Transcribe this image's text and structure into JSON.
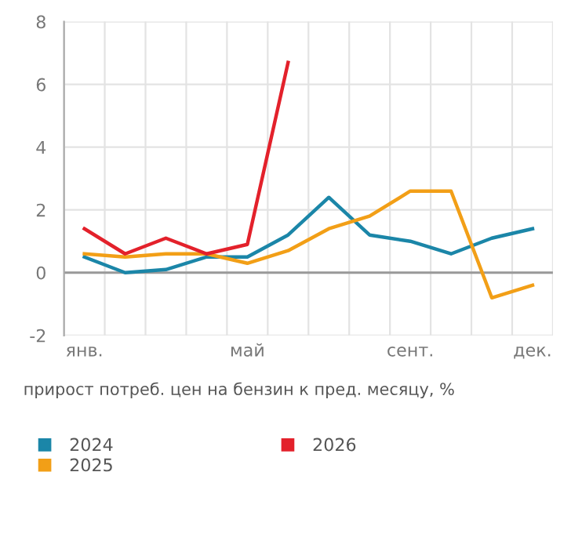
{
  "chart_data": {
    "type": "line",
    "xlabel": "прирост потреб. цен на бензин к пред. месяцу, %",
    "categories": [
      "янв.",
      null,
      null,
      null,
      "май",
      null,
      null,
      null,
      "сент.",
      null,
      null,
      "дек."
    ],
    "series": [
      {
        "name": "2024",
        "color": "#1b86a8",
        "values": [
          0.5,
          0.0,
          0.1,
          0.5,
          0.5,
          1.2,
          2.4,
          1.2,
          1.0,
          0.6,
          1.1,
          1.4
        ]
      },
      {
        "name": "2025",
        "color": "#f29f17",
        "values": [
          0.6,
          0.5,
          0.6,
          0.6,
          0.3,
          0.7,
          1.4,
          1.8,
          2.6,
          2.6,
          -0.8,
          -0.4
        ]
      },
      {
        "name": "2026",
        "color": "#e3212b",
        "values": [
          1.4,
          0.6,
          1.1,
          0.6,
          0.9,
          6.7,
          null,
          null,
          null,
          null,
          null,
          null
        ]
      }
    ],
    "ylim": [
      -2,
      8
    ],
    "yticks": [
      -2,
      0,
      2,
      4,
      6,
      8
    ],
    "grid": true,
    "legend": "bottom",
    "marker": "none",
    "line_style": "solid",
    "ref_lines": [
      {
        "axis": "y",
        "value": 0,
        "color": "#999999"
      }
    ]
  }
}
